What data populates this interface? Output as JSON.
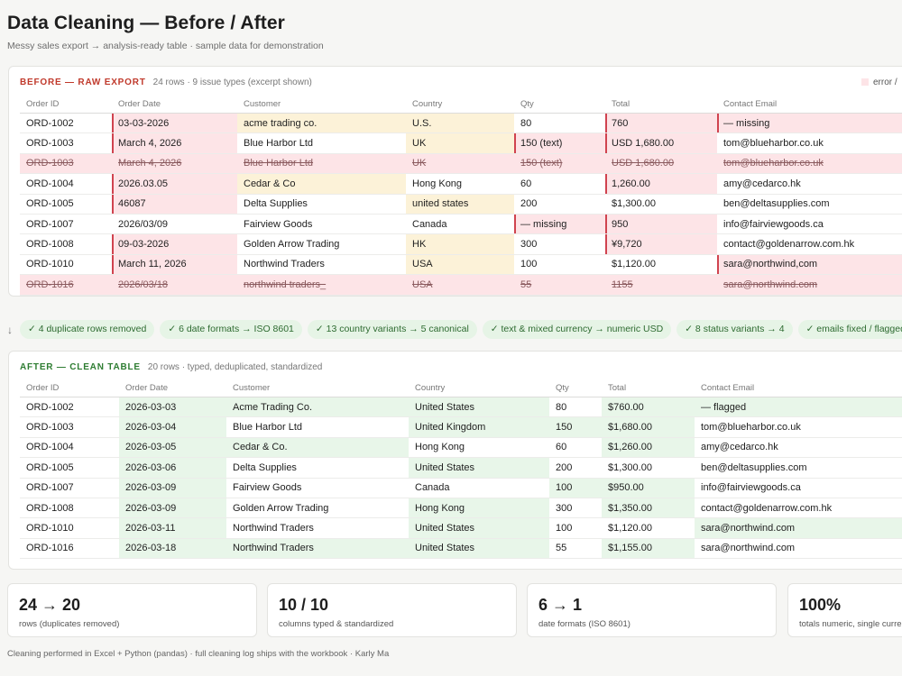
{
  "header": {
    "title": "Data Cleaning — Before / After",
    "subtitle": "Messy sales export → analysis-ready table · sample data for demonstration"
  },
  "before": {
    "title": "BEFORE — RAW EXPORT",
    "subtitle": "24 rows · 9 issue types (excerpt shown)",
    "legend_label": "error /",
    "columns": [
      "Order ID",
      "Order Date",
      "Customer",
      "Country",
      "Qty",
      "Total",
      "Contact Email"
    ],
    "rows": [
      {
        "dup": false,
        "cells": [
          {
            "v": "ORD-1002",
            "s": ""
          },
          {
            "v": "03-03-2026",
            "s": "err"
          },
          {
            "v": "acme trading co.",
            "s": "warn"
          },
          {
            "v": "U.S.",
            "s": "warn"
          },
          {
            "v": "80",
            "s": ""
          },
          {
            "v": "760",
            "s": "err"
          },
          {
            "v": "— missing",
            "s": "err"
          }
        ]
      },
      {
        "dup": false,
        "cells": [
          {
            "v": "ORD-1003",
            "s": ""
          },
          {
            "v": "March 4, 2026",
            "s": "err"
          },
          {
            "v": "Blue Harbor Ltd",
            "s": ""
          },
          {
            "v": "UK",
            "s": "warn"
          },
          {
            "v": "150 (text)",
            "s": "err"
          },
          {
            "v": "USD 1,680.00",
            "s": "err"
          },
          {
            "v": "tom@blueharbor.co.uk",
            "s": ""
          }
        ]
      },
      {
        "dup": true,
        "cells": [
          {
            "v": "ORD-1003",
            "s": ""
          },
          {
            "v": "March 4, 2026",
            "s": ""
          },
          {
            "v": "Blue Harbor Ltd",
            "s": ""
          },
          {
            "v": "UK",
            "s": ""
          },
          {
            "v": "150 (text)",
            "s": ""
          },
          {
            "v": "USD 1,680.00",
            "s": ""
          },
          {
            "v": "tom@blueharbor.co.uk",
            "s": ""
          }
        ]
      },
      {
        "dup": false,
        "cells": [
          {
            "v": "ORD-1004",
            "s": ""
          },
          {
            "v": "2026.03.05",
            "s": "err"
          },
          {
            "v": "Cedar & Co",
            "s": "warn"
          },
          {
            "v": "Hong Kong",
            "s": ""
          },
          {
            "v": "60",
            "s": ""
          },
          {
            "v": "1,260.00",
            "s": "err"
          },
          {
            "v": "amy@cedarco.hk",
            "s": ""
          }
        ]
      },
      {
        "dup": false,
        "cells": [
          {
            "v": "ORD-1005",
            "s": ""
          },
          {
            "v": "46087",
            "s": "err"
          },
          {
            "v": "Delta Supplies",
            "s": ""
          },
          {
            "v": "united states",
            "s": "warn"
          },
          {
            "v": "200",
            "s": ""
          },
          {
            "v": "$1,300.00",
            "s": ""
          },
          {
            "v": "ben@deltasupplies.com",
            "s": ""
          }
        ]
      },
      {
        "dup": false,
        "cells": [
          {
            "v": "ORD-1007",
            "s": ""
          },
          {
            "v": "2026/03/09",
            "s": ""
          },
          {
            "v": "Fairview Goods",
            "s": ""
          },
          {
            "v": "Canada",
            "s": ""
          },
          {
            "v": "— missing",
            "s": "err"
          },
          {
            "v": "950",
            "s": "err"
          },
          {
            "v": "info@fairviewgoods.ca",
            "s": ""
          }
        ]
      },
      {
        "dup": false,
        "cells": [
          {
            "v": "ORD-1008",
            "s": ""
          },
          {
            "v": "09-03-2026",
            "s": "err"
          },
          {
            "v": "Golden Arrow Trading",
            "s": ""
          },
          {
            "v": "HK",
            "s": "warn"
          },
          {
            "v": "300",
            "s": ""
          },
          {
            "v": "¥9,720",
            "s": "err"
          },
          {
            "v": "contact@goldenarrow.com.hk",
            "s": ""
          }
        ]
      },
      {
        "dup": false,
        "cells": [
          {
            "v": "ORD-1010",
            "s": ""
          },
          {
            "v": "March 11, 2026",
            "s": "err"
          },
          {
            "v": "Northwind Traders",
            "s": ""
          },
          {
            "v": "USA",
            "s": "warn"
          },
          {
            "v": "100",
            "s": ""
          },
          {
            "v": "$1,120.00",
            "s": ""
          },
          {
            "v": "sara@northwind,com",
            "s": "err"
          }
        ]
      },
      {
        "dup": true,
        "cells": [
          {
            "v": "ORD-1016",
            "s": ""
          },
          {
            "v": "2026/03/18",
            "s": ""
          },
          {
            "v": "northwind traders_",
            "s": ""
          },
          {
            "v": "USA",
            "s": ""
          },
          {
            "v": "55",
            "s": ""
          },
          {
            "v": "1155",
            "s": ""
          },
          {
            "v": "sara@northwind.com",
            "s": ""
          }
        ]
      }
    ]
  },
  "chips": {
    "arrow": "↓",
    "items": [
      "✓ 4 duplicate rows removed",
      "✓ 6 date formats → ISO 8601",
      "✓ 13 country variants → 5 canonical",
      "✓ text & mixed currency → numeric USD",
      "✓ 8 status variants → 4",
      "✓ emails fixed / flagged"
    ]
  },
  "after": {
    "title": "AFTER — CLEAN TABLE",
    "subtitle": "20 rows · typed, deduplicated, standardized",
    "columns": [
      "Order ID",
      "Order Date",
      "Customer",
      "Country",
      "Qty",
      "Total",
      "Contact Email"
    ],
    "rows": [
      {
        "cells": [
          {
            "v": "ORD-1002",
            "s": ""
          },
          {
            "v": "2026-03-03",
            "s": "fix"
          },
          {
            "v": "Acme Trading Co.",
            "s": "fix"
          },
          {
            "v": "United States",
            "s": "fix"
          },
          {
            "v": "80",
            "s": ""
          },
          {
            "v": "$760.00",
            "s": "fix"
          },
          {
            "v": "— flagged",
            "s": "fix"
          }
        ]
      },
      {
        "cells": [
          {
            "v": "ORD-1003",
            "s": ""
          },
          {
            "v": "2026-03-04",
            "s": "fix"
          },
          {
            "v": "Blue Harbor Ltd",
            "s": ""
          },
          {
            "v": "United Kingdom",
            "s": "fix"
          },
          {
            "v": "150",
            "s": "fix"
          },
          {
            "v": "$1,680.00",
            "s": "fix"
          },
          {
            "v": "tom@blueharbor.co.uk",
            "s": ""
          }
        ]
      },
      {
        "cells": [
          {
            "v": "ORD-1004",
            "s": ""
          },
          {
            "v": "2026-03-05",
            "s": "fix"
          },
          {
            "v": "Cedar & Co.",
            "s": "fix"
          },
          {
            "v": "Hong Kong",
            "s": ""
          },
          {
            "v": "60",
            "s": ""
          },
          {
            "v": "$1,260.00",
            "s": "fix"
          },
          {
            "v": "amy@cedarco.hk",
            "s": ""
          }
        ]
      },
      {
        "cells": [
          {
            "v": "ORD-1005",
            "s": ""
          },
          {
            "v": "2026-03-06",
            "s": "fix"
          },
          {
            "v": "Delta Supplies",
            "s": ""
          },
          {
            "v": "United States",
            "s": "fix"
          },
          {
            "v": "200",
            "s": ""
          },
          {
            "v": "$1,300.00",
            "s": ""
          },
          {
            "v": "ben@deltasupplies.com",
            "s": ""
          }
        ]
      },
      {
        "cells": [
          {
            "v": "ORD-1007",
            "s": ""
          },
          {
            "v": "2026-03-09",
            "s": "fix"
          },
          {
            "v": "Fairview Goods",
            "s": ""
          },
          {
            "v": "Canada",
            "s": ""
          },
          {
            "v": "100",
            "s": "fix"
          },
          {
            "v": "$950.00",
            "s": "fix"
          },
          {
            "v": "info@fairviewgoods.ca",
            "s": ""
          }
        ]
      },
      {
        "cells": [
          {
            "v": "ORD-1008",
            "s": ""
          },
          {
            "v": "2026-03-09",
            "s": "fix"
          },
          {
            "v": "Golden Arrow Trading",
            "s": ""
          },
          {
            "v": "Hong Kong",
            "s": "fix"
          },
          {
            "v": "300",
            "s": ""
          },
          {
            "v": "$1,350.00",
            "s": "fix"
          },
          {
            "v": "contact@goldenarrow.com.hk",
            "s": ""
          }
        ]
      },
      {
        "cells": [
          {
            "v": "ORD-1010",
            "s": ""
          },
          {
            "v": "2026-03-11",
            "s": "fix"
          },
          {
            "v": "Northwind Traders",
            "s": ""
          },
          {
            "v": "United States",
            "s": "fix"
          },
          {
            "v": "100",
            "s": ""
          },
          {
            "v": "$1,120.00",
            "s": ""
          },
          {
            "v": "sara@northwind.com",
            "s": "fix"
          }
        ]
      },
      {
        "cells": [
          {
            "v": "ORD-1016",
            "s": ""
          },
          {
            "v": "2026-03-18",
            "s": "fix"
          },
          {
            "v": "Northwind Traders",
            "s": "fix"
          },
          {
            "v": "United States",
            "s": "fix"
          },
          {
            "v": "55",
            "s": ""
          },
          {
            "v": "$1,155.00",
            "s": "fix"
          },
          {
            "v": "sara@northwind.com",
            "s": ""
          }
        ]
      }
    ]
  },
  "stats": [
    {
      "value": "24 → 20",
      "caption": "rows (duplicates removed)"
    },
    {
      "value": "10 / 10",
      "caption": "columns typed & standardized"
    },
    {
      "value": "6 → 1",
      "caption": "date formats (ISO 8601)"
    },
    {
      "value": "100%",
      "caption": "totals numeric, single curre"
    }
  ],
  "footer": "Cleaning performed in Excel + Python (pandas) · full cleaning log ships with the workbook · Karly Ma",
  "colors": {
    "error": "#fde4e7",
    "warning": "#fcf2d8",
    "fixed": "#e8f6e9"
  }
}
